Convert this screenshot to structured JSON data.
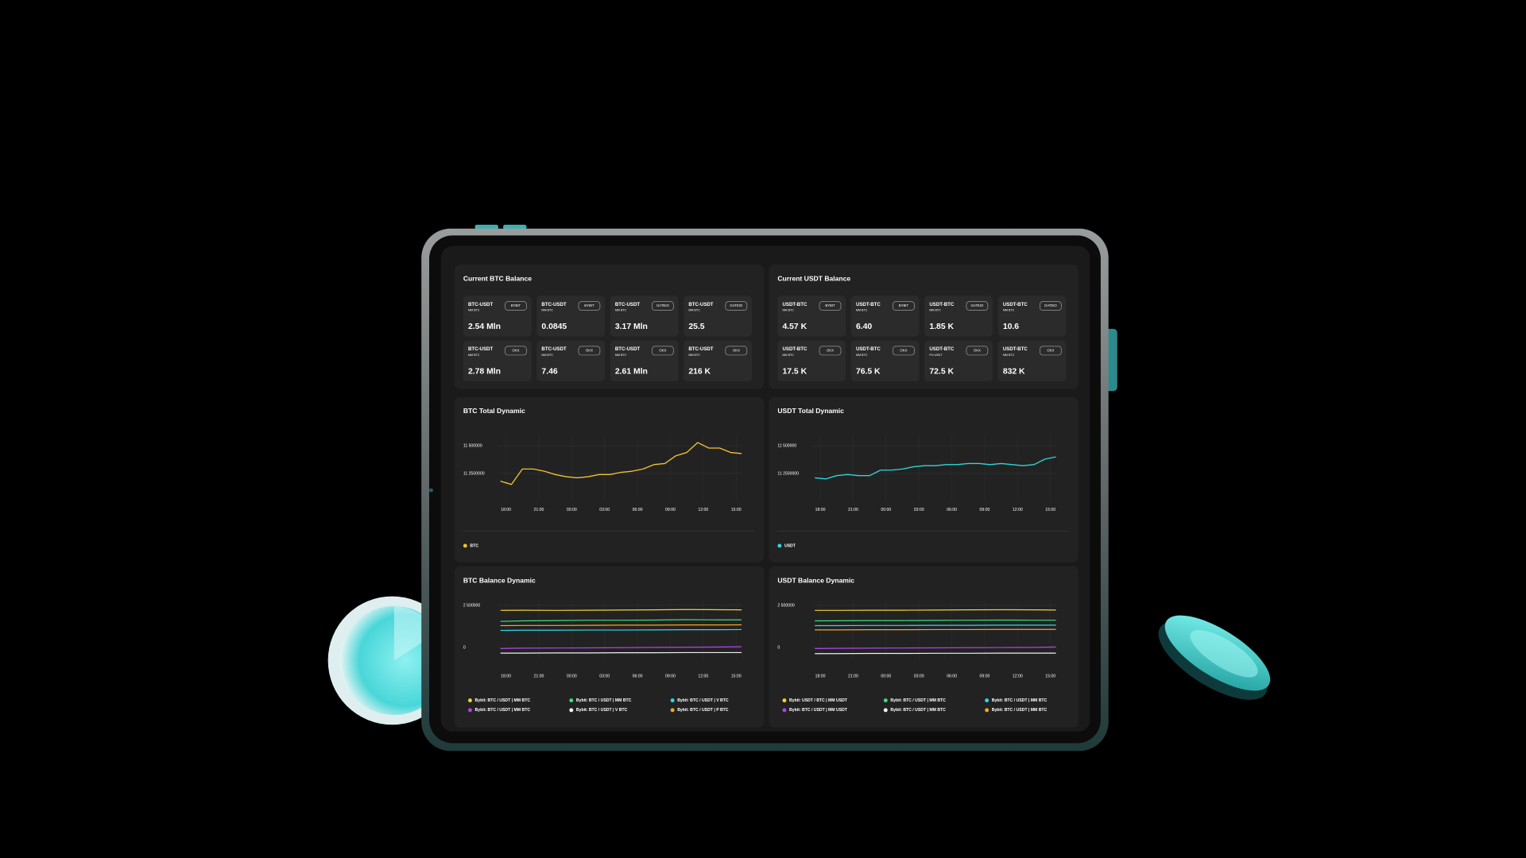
{
  "balances": [
    {
      "title": "Current BTC Balance",
      "cards": [
        {
          "pair": "BTC-USDT",
          "sub": "MM BTC",
          "exchange": "BYBIT",
          "value": "2.54 Mln",
          "color": "#e4f03a"
        },
        {
          "pair": "BTC-USDT",
          "sub": "MM BTC",
          "exchange": "BYBIT",
          "value": "0.0845",
          "color": "#f5b731"
        },
        {
          "pair": "BTC-USDT",
          "sub": "MM BTC",
          "exchange": "GATEIO",
          "value": "3.17 Mln",
          "color": "#e4f03a"
        },
        {
          "pair": "BTC-USDT",
          "sub": "MM BTC",
          "exchange": "GATEIO",
          "value": "25.5",
          "color": "#f5b731"
        },
        {
          "pair": "BTC-USDT",
          "sub": "MM BTC",
          "exchange": "OKX",
          "value": "2.78 Mln",
          "color": "#e4f03a"
        },
        {
          "pair": "BTC-USDT",
          "sub": "MM BTC",
          "exchange": "OKX",
          "value": "7.46",
          "color": "#f5b731"
        },
        {
          "pair": "BTC-USDT",
          "sub": "MM BTC",
          "exchange": "OKX",
          "value": "2.61 Mln",
          "color": "#e4f03a"
        },
        {
          "pair": "BTC-USDT",
          "sub": "MM BTC",
          "exchange": "OKX",
          "value": "216 K",
          "color": "#f5b731"
        }
      ]
    },
    {
      "title": "Current USDT Balance",
      "cards": [
        {
          "pair": "USDT-BTC",
          "sub": "MM BTC",
          "exchange": "BYBIT",
          "value": "4.57 K",
          "color": "#f5b731"
        },
        {
          "pair": "USDT-BTC",
          "sub": "MM BTC",
          "exchange": "BYBIT",
          "value": "6.40",
          "color": "#e4f03a"
        },
        {
          "pair": "USDT-BTC",
          "sub": "MM BTC",
          "exchange": "GATEIO",
          "value": "1.85 K",
          "color": "#f5b731"
        },
        {
          "pair": "USDT-BTC",
          "sub": "MM BTC",
          "exchange": "GATEIO",
          "value": "10.6",
          "color": "#e4f03a"
        },
        {
          "pair": "USDT-BTC",
          "sub": "MM BTC",
          "exchange": "OKX",
          "value": "17.5 K",
          "color": "#f5b731"
        },
        {
          "pair": "USDT-BTC",
          "sub": "MM BTC",
          "exchange": "OKX",
          "value": "76.5 K",
          "color": "#e4f03a"
        },
        {
          "pair": "USDT-BTC",
          "sub": "PU USDT",
          "exchange": "OKX",
          "value": "72.5 K",
          "color": "#f5b731"
        },
        {
          "pair": "USDT-BTC",
          "sub": "MM BTC",
          "exchange": "OKX",
          "value": "832 K",
          "color": "#f5b731"
        }
      ]
    }
  ],
  "chart_data": [
    {
      "type": "line",
      "title": "BTC Total Dynamic",
      "grid": true,
      "x": [
        -0.5,
        0.5,
        1.5,
        2.5,
        3.5,
        4.5,
        5.5,
        6.5,
        7.5,
        8.5,
        9.5,
        10.5,
        11.5,
        12.5,
        13.5,
        14.5,
        15.5,
        16.5,
        17.5,
        18.5,
        19.5,
        20.5,
        21.5
      ],
      "xlim": [
        -0.7,
        21.5
      ],
      "xticks": [
        {
          "value": 0,
          "label": "18:00"
        },
        {
          "value": 3,
          "label": "21:00"
        },
        {
          "value": 6,
          "label": "00:00"
        },
        {
          "value": 9,
          "label": "03:00"
        },
        {
          "value": 12,
          "label": "06:00"
        },
        {
          "value": 15,
          "label": "09:00"
        },
        {
          "value": 18,
          "label": "12:00"
        },
        {
          "value": 21,
          "label": "15:00"
        }
      ],
      "ylim": [
        11000000,
        11600000
      ],
      "yticks": [
        {
          "value": 11250000,
          "label": "11 2500000"
        },
        {
          "value": 11500000,
          "label": "11 500000"
        }
      ],
      "series": [
        {
          "name": "BTC",
          "color": "#f2c230",
          "values": [
            11180000,
            11150000,
            11290000,
            11290000,
            11270000,
            11240000,
            11220000,
            11210000,
            11220000,
            11240000,
            11240000,
            11260000,
            11270000,
            11290000,
            11330000,
            11340000,
            11410000,
            11440000,
            11530000,
            11480000,
            11480000,
            11440000,
            11430000
          ]
        }
      ]
    },
    {
      "type": "line",
      "title": "USDT Total Dynamic",
      "grid": true,
      "x": [
        -0.5,
        0.5,
        1.5,
        2.5,
        3.5,
        4.5,
        5.5,
        6.5,
        7.5,
        8.5,
        9.5,
        10.5,
        11.5,
        12.5,
        13.5,
        14.5,
        15.5,
        16.5,
        17.5,
        18.5,
        19.5,
        20.5,
        21.5
      ],
      "xlim": [
        -0.7,
        21.5
      ],
      "xticks": [
        {
          "value": 0,
          "label": "18:00"
        },
        {
          "value": 3,
          "label": "21:00"
        },
        {
          "value": 6,
          "label": "00:00"
        },
        {
          "value": 9,
          "label": "03:00"
        },
        {
          "value": 12,
          "label": "06:00"
        },
        {
          "value": 15,
          "label": "09:00"
        },
        {
          "value": 18,
          "label": "12:00"
        },
        {
          "value": 21,
          "label": "15:00"
        }
      ],
      "ylim": [
        11000000,
        11600000
      ],
      "yticks": [
        {
          "value": 11250000,
          "label": "11 2500000"
        },
        {
          "value": 11500000,
          "label": "11 500000"
        }
      ],
      "series": [
        {
          "name": "USDT",
          "color": "#2ed8d8",
          "values": [
            11210000,
            11200000,
            11230000,
            11240000,
            11230000,
            11230000,
            11280000,
            11280000,
            11290000,
            11310000,
            11320000,
            11320000,
            11330000,
            11330000,
            11340000,
            11340000,
            11330000,
            11340000,
            11330000,
            11320000,
            11330000,
            11380000,
            11400000
          ]
        }
      ]
    },
    {
      "type": "line",
      "title": "BTC Balance Dynamic",
      "grid": true,
      "x": [
        -0.5,
        1.5,
        4.5,
        7.5,
        10.5,
        13.5,
        16.5,
        19.5,
        21.5
      ],
      "xlim": [
        -0.7,
        21.5
      ],
      "xticks": [
        {
          "value": 0,
          "label": "18:00"
        },
        {
          "value": 3,
          "label": "21:00"
        },
        {
          "value": 6,
          "label": "00:00"
        },
        {
          "value": 9,
          "label": "03:00"
        },
        {
          "value": 12,
          "label": "06:00"
        },
        {
          "value": 15,
          "label": "09:00"
        },
        {
          "value": 18,
          "label": "12:00"
        },
        {
          "value": 21,
          "label": "15:00"
        }
      ],
      "ylim": [
        -700000,
        2800000
      ],
      "yticks": [
        0,
        {
          "value": 2500000,
          "label": "2 500000"
        }
      ],
      "series": [
        {
          "name": "Bybit: BTC / USDT | MM BTC",
          "color": "#f2d230",
          "values": [
            2200000,
            2210000,
            2200000,
            2210000,
            2220000,
            2230000,
            2250000,
            2240000,
            2230000
          ]
        },
        {
          "name": "Bybit: BTC / USDT | MM BTC",
          "color": "#3ee07a",
          "values": [
            1550000,
            1580000,
            1600000,
            1620000,
            1620000,
            1630000,
            1650000,
            1640000,
            1640000
          ]
        },
        {
          "name": "Bybit: BTC / USDT | V BTC",
          "color": "#2ed8e8",
          "values": [
            1020000,
            1030000,
            1030000,
            1040000,
            1040000,
            1050000,
            1060000,
            1060000,
            1070000
          ]
        },
        {
          "name": "Bybit: BTC / USDT | MM BTC",
          "color": "#b040f0",
          "values": [
            -50000,
            -30000,
            -20000,
            -10000,
            0,
            20000,
            30000,
            40000,
            60000
          ]
        },
        {
          "name": "Bybit: BTC / USDT | V BTC",
          "color": "#f0f0f0",
          "values": [
            -320000,
            -320000,
            -310000,
            -310000,
            -300000,
            -300000,
            -290000,
            -290000,
            -290000
          ]
        },
        {
          "name": "Bybit: BTC / USDT | P BTC",
          "color": "#f5a623",
          "values": [
            1300000,
            1310000,
            1310000,
            1320000,
            1330000,
            1330000,
            1340000,
            1340000,
            1350000
          ]
        }
      ]
    },
    {
      "type": "line",
      "title": "USDT Balance Dynamic",
      "grid": true,
      "x": [
        -0.5,
        1.5,
        4.5,
        7.5,
        10.5,
        13.5,
        16.5,
        19.5,
        21.5
      ],
      "xlim": [
        -0.7,
        21.5
      ],
      "xticks": [
        {
          "value": 0,
          "label": "18:00"
        },
        {
          "value": 3,
          "label": "21:00"
        },
        {
          "value": 6,
          "label": "00:00"
        },
        {
          "value": 9,
          "label": "03:00"
        },
        {
          "value": 12,
          "label": "06:00"
        },
        {
          "value": 15,
          "label": "09:00"
        },
        {
          "value": 18,
          "label": "12:00"
        },
        {
          "value": 21,
          "label": "15:00"
        }
      ],
      "ylim": [
        -700000,
        2800000
      ],
      "yticks": [
        0,
        {
          "value": 2500000,
          "label": "2 500000"
        }
      ],
      "series": [
        {
          "name": "Bybit: USDT / BTC | MM USDT",
          "color": "#f2d230",
          "values": [
            2200000,
            2200000,
            2210000,
            2210000,
            2220000,
            2230000,
            2240000,
            2230000,
            2220000
          ]
        },
        {
          "name": "Bybit: BTC / USDT | MM BTC",
          "color": "#3ee07a",
          "values": [
            1580000,
            1590000,
            1600000,
            1600000,
            1610000,
            1620000,
            1630000,
            1620000,
            1620000
          ]
        },
        {
          "name": "Bybit: BTC / USDT | MM BTC",
          "color": "#2ed8e8",
          "values": [
            1300000,
            1300000,
            1310000,
            1310000,
            1320000,
            1320000,
            1330000,
            1330000,
            1330000
          ]
        },
        {
          "name": "Bybit: BTC / USDT | MM USDT",
          "color": "#b040f0",
          "values": [
            -50000,
            -40000,
            -30000,
            -20000,
            -10000,
            0,
            10000,
            20000,
            40000
          ]
        },
        {
          "name": "Bybit: BTC / USDT | MM BTC",
          "color": "#f0f0f0",
          "values": [
            -350000,
            -350000,
            -340000,
            -340000,
            -330000,
            -330000,
            -320000,
            -320000,
            -320000
          ]
        },
        {
          "name": "Bybit: BTC / USDT | MM BTC",
          "color": "#f5a623",
          "values": [
            1050000,
            1050000,
            1060000,
            1060000,
            1070000,
            1070000,
            1080000,
            1080000,
            1080000
          ]
        }
      ]
    }
  ]
}
